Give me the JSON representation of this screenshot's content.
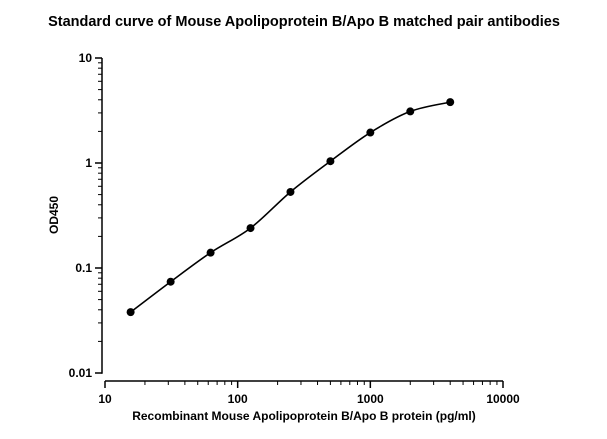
{
  "chart_data": {
    "type": "scatter",
    "title": "Standard curve of Mouse Apolipoprotein B/Apo B matched pair antibodies",
    "xlabel": "Recombinant Mouse Apolipoprotein B/Apo B protein (pg/ml)",
    "ylabel": "OD450",
    "x_scale": "log",
    "y_scale": "log",
    "xlim": [
      10,
      10000
    ],
    "ylim": [
      0.01,
      10
    ],
    "x_ticks": [
      "10",
      "100",
      "1000",
      "10000"
    ],
    "y_ticks": [
      "0.01",
      "0.1",
      "1",
      "10"
    ],
    "grid": false,
    "series": [
      {
        "x": [
          15.6,
          31.25,
          62.5,
          125,
          250,
          500,
          1000,
          2000,
          4000
        ],
        "y": [
          0.038,
          0.074,
          0.14,
          0.24,
          0.53,
          1.04,
          1.95,
          3.1,
          3.8
        ]
      }
    ],
    "fit_curve": true
  }
}
